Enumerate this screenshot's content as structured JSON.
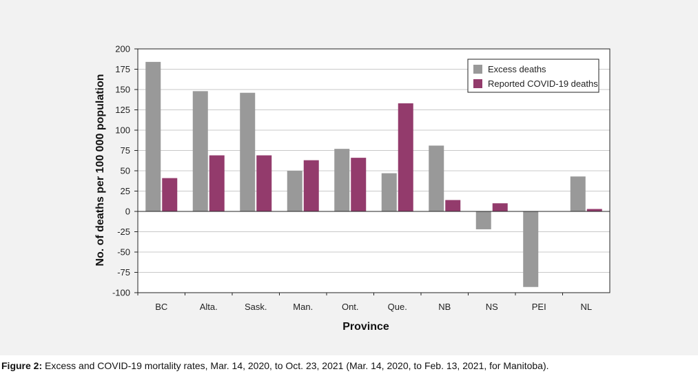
{
  "chart_data": {
    "type": "bar",
    "title": "",
    "xlabel": "Province",
    "ylabel": "No. of deaths per 100 000 population",
    "ylim": [
      -100,
      200
    ],
    "yticks": [
      200,
      175,
      150,
      125,
      100,
      75,
      50,
      25,
      0,
      -25,
      -50,
      -75,
      -100
    ],
    "grid": true,
    "legend_position": "top-right",
    "categories": [
      "BC",
      "Alta.",
      "Sask.",
      "Man.",
      "Ont.",
      "Que.",
      "NB",
      "NS",
      "PEI",
      "NL"
    ],
    "series": [
      {
        "name": "Excess deaths",
        "color": "#999999",
        "values": [
          184,
          148,
          146,
          50,
          77,
          47,
          81,
          -22,
          -93,
          43
        ]
      },
      {
        "name": "Reported COVID-19 deaths",
        "color": "#933b6c",
        "values": [
          41,
          69,
          69,
          63,
          66,
          133,
          14,
          10,
          0,
          3
        ]
      }
    ]
  },
  "caption": {
    "label": "Figure 2:",
    "text": " Excess and COVID-19 mortality rates, Mar. 14, 2020, to Oct. 23, 2021 (Mar. 14, 2020, to Feb. 13, 2021, for Manitoba)."
  }
}
